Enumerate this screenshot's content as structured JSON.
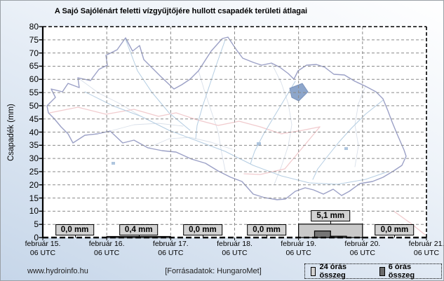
{
  "title": "A Sajó Sajólénárt feletti vízgyűjtőjére hullott csapadék területi átlagai",
  "y_axis": {
    "label": "Csapadék (mm)",
    "ticks": [
      0,
      5,
      10,
      15,
      20,
      25,
      30,
      35,
      40,
      45,
      50,
      55,
      60,
      65,
      70,
      75,
      80
    ]
  },
  "x_axis": {
    "ticks": [
      {
        "line1": "február 15.",
        "line2": "06 UTC"
      },
      {
        "line1": "február 16.",
        "line2": "06 UTC"
      },
      {
        "line1": "február 17.",
        "line2": "06 UTC"
      },
      {
        "line1": "február 18.",
        "line2": "06 UTC"
      },
      {
        "line1": "február 19.",
        "line2": "06 UTC"
      },
      {
        "line1": "február 20.",
        "line2": "06 UTC"
      },
      {
        "line1": "február 21.",
        "line2": "06 UTC"
      }
    ]
  },
  "footer": {
    "site": "www.hydroinfo.hu",
    "source": "[Forrásadatok: HungaroMet]"
  },
  "legend": {
    "items": [
      {
        "label": "24 órás összeg",
        "color": "#d2d2d2"
      },
      {
        "label": "6 órás összeg",
        "color": "#6b6b6b"
      }
    ]
  },
  "chart_data": {
    "type": "bar",
    "title": "A Sajó Sajólénárt feletti vízgyűjtőjére hullott csapadék területi átlagai",
    "ylabel": "Csapadék (mm)",
    "ylim": [
      0,
      80
    ],
    "y_tick_step": 5,
    "grid": true,
    "legend_position": "bottom-right",
    "x_ticks": [
      "február 15. 06 UTC",
      "február 16. 06 UTC",
      "február 17. 06 UTC",
      "február 18. 06 UTC",
      "február 19. 06 UTC",
      "február 20. 06 UTC",
      "február 21. 06 UTC"
    ],
    "intervals": [
      {
        "start": "február 15. 06 UTC",
        "sum_24h_mm": 0.0,
        "label": "0,0 mm"
      },
      {
        "start": "február 16. 06 UTC",
        "sum_24h_mm": 0.4,
        "label": "0,4 mm"
      },
      {
        "start": "február 17. 06 UTC",
        "sum_24h_mm": 0.0,
        "label": "0,0 mm"
      },
      {
        "start": "február 18. 06 UTC",
        "sum_24h_mm": 0.0,
        "label": "0,0 mm"
      },
      {
        "start": "február 19. 06 UTC",
        "sum_24h_mm": 5.1,
        "label": "5,1 mm"
      },
      {
        "start": "február 20. 06 UTC",
        "sum_24h_mm": 0.0,
        "label": "0,0 mm"
      }
    ],
    "six_hour_bars": [
      {
        "interval_index": 4,
        "slot": 1,
        "value_mm": 2.5
      },
      {
        "interval_index": 4,
        "slot": 2,
        "value_mm": 0.5
      }
    ],
    "series_colors": {
      "sum_24h": "#c9c9c9",
      "sum_6h": "#757575"
    }
  }
}
